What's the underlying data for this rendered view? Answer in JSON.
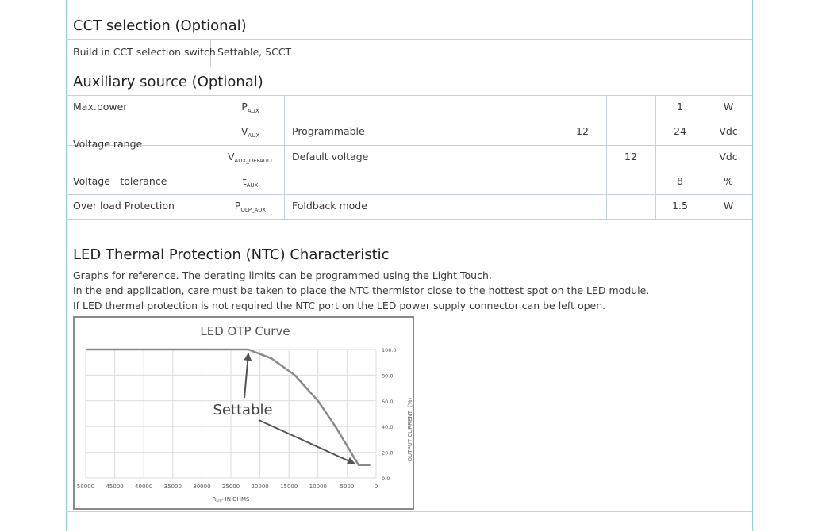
{
  "sections": [
    {
      "title": "CCT selection (Optional)"
    },
    {
      "title": "Auxiliary source (Optional)"
    },
    {
      "title": "LED Thermal Protection (NTC) Characteristic"
    }
  ],
  "cct_table": {
    "label": "Build in CCT selection switch",
    "value": "Settable, 5CCT"
  },
  "aux_table": {
    "rows": [
      {
        "parameter": "Max.power",
        "symbol": {
          "base": "P",
          "sub": "AUX"
        },
        "max": 1,
        "unit": "W"
      },
      {
        "parameter": "Voltage range",
        "symbol": {
          "base": "V",
          "sub": "AUX"
        },
        "condition": "Programmable",
        "min": 12,
        "max": 24,
        "unit": "Vdc"
      },
      {
        "symbol": {
          "base": "V",
          "sub": "AUX_DEFAULT"
        },
        "condition": "Default voltage",
        "typ": 12,
        "unit": "Vdc"
      },
      {
        "parameter": "Voltage　tolerance",
        "symbol": {
          "base": "t",
          "sub": "AUX"
        },
        "max": 8,
        "unit": "%"
      },
      {
        "parameter": "Over load Protection",
        "symbol": {
          "base": "P",
          "sub": "OLP_AUX"
        },
        "condition": "Foldback mode",
        "max": 1.5,
        "unit": "W"
      }
    ]
  },
  "ntc_text": [
    "Graphs for reference. The derating limits can be programmed using the Light Touch.",
    "In the end application, care must be taken to place the NTC thermistor close to the hottest spot on the LED module.",
    "If LED thermal protection is not required the NTC port on the LED power supply connector can be left open."
  ],
  "chart_data": {
    "type": "line",
    "title": "LED OTP Curve",
    "annotation": "Settable",
    "x_label": {
      "base": "R",
      "sub": "NTC",
      "rest": " IN OHMS"
    },
    "y_label": "OUTPUT CURRENT（%）",
    "x": [
      50000,
      22000,
      18000,
      14000,
      10000,
      7000,
      5000,
      3000,
      1000
    ],
    "values": [
      100,
      100,
      93,
      80,
      60,
      40,
      25,
      10,
      10
    ],
    "color": "#8a8a8a",
    "xlim": [
      50000,
      0
    ],
    "xticks": [
      50000,
      45000,
      40000,
      35000,
      30000,
      25000,
      20000,
      15000,
      10000,
      5000,
      0
    ],
    "ylim": [
      0,
      100
    ],
    "yticks": [
      {
        "value": 0,
        "label": "0.0"
      },
      {
        "value": 20,
        "label": "20.0"
      },
      {
        "value": 40,
        "label": "40.0"
      },
      {
        "value": 60,
        "label": "60.0"
      },
      {
        "value": 80,
        "label": "80.0"
      },
      {
        "value": 100,
        "label": "100.0"
      }
    ],
    "grid": true
  }
}
